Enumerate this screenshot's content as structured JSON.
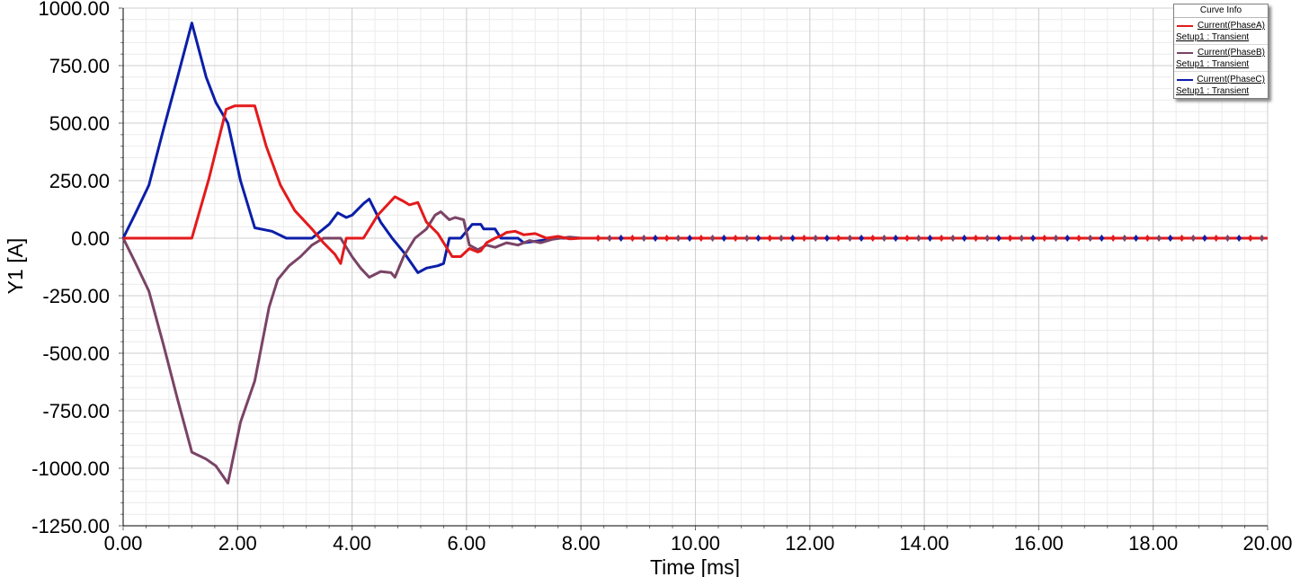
{
  "chart_data": {
    "type": "line",
    "xlabel": "Time [ms]",
    "ylabel": "Y1 [A]",
    "xlim": [
      0,
      20
    ],
    "ylim": [
      -1250,
      1000
    ],
    "x_ticks": [
      "0.00",
      "2.00",
      "4.00",
      "6.00",
      "8.00",
      "10.00",
      "12.00",
      "14.00",
      "16.00",
      "18.00",
      "20.00"
    ],
    "y_ticks": [
      "1000.00",
      "750.00",
      "500.00",
      "250.00",
      "0.00",
      "-250.00",
      "-500.00",
      "-750.00",
      "-1000.00",
      "-1250.00"
    ],
    "grid": true,
    "legend": {
      "title": "Curve Info",
      "position": "top-right"
    },
    "series": [
      {
        "name": "Current(PhaseA)",
        "setup": "Setup1 : Transient",
        "color": "#e31a1c",
        "points": [
          [
            0,
            0
          ],
          [
            1.2,
            0
          ],
          [
            1.5,
            260
          ],
          [
            1.8,
            560
          ],
          [
            1.95,
            575
          ],
          [
            2.3,
            575
          ],
          [
            2.5,
            400
          ],
          [
            2.75,
            230
          ],
          [
            3.0,
            120
          ],
          [
            3.3,
            40
          ],
          [
            3.5,
            -20
          ],
          [
            3.7,
            -70
          ],
          [
            3.8,
            -110
          ],
          [
            3.9,
            0
          ],
          [
            4.2,
            0
          ],
          [
            4.45,
            100
          ],
          [
            4.75,
            180
          ],
          [
            4.9,
            160
          ],
          [
            5.0,
            145
          ],
          [
            5.15,
            155
          ],
          [
            5.3,
            70
          ],
          [
            5.5,
            20
          ],
          [
            5.75,
            -80
          ],
          [
            5.9,
            -80
          ],
          [
            6.05,
            -45
          ],
          [
            6.2,
            -60
          ],
          [
            6.25,
            -55
          ],
          [
            6.35,
            -20
          ],
          [
            6.5,
            0
          ],
          [
            6.6,
            10
          ],
          [
            6.7,
            25
          ],
          [
            6.85,
            30
          ],
          [
            7.0,
            15
          ],
          [
            7.2,
            20
          ],
          [
            7.4,
            0
          ],
          [
            7.6,
            8
          ],
          [
            7.8,
            -3
          ],
          [
            8.0,
            0
          ],
          [
            20,
            0
          ]
        ]
      },
      {
        "name": "Current(PhaseB)",
        "setup": "Setup1 : Transient",
        "color": "#7a4466",
        "points": [
          [
            0,
            0
          ],
          [
            0.2,
            -100
          ],
          [
            0.45,
            -230
          ],
          [
            0.7,
            -460
          ],
          [
            0.95,
            -700
          ],
          [
            1.2,
            -930
          ],
          [
            1.45,
            -960
          ],
          [
            1.62,
            -990
          ],
          [
            1.83,
            -1065
          ],
          [
            2.05,
            -800
          ],
          [
            2.3,
            -620
          ],
          [
            2.55,
            -300
          ],
          [
            2.7,
            -180
          ],
          [
            2.9,
            -120
          ],
          [
            3.1,
            -80
          ],
          [
            3.3,
            -30
          ],
          [
            3.5,
            0
          ],
          [
            3.8,
            0
          ],
          [
            4.0,
            -80
          ],
          [
            4.15,
            -130
          ],
          [
            4.3,
            -170
          ],
          [
            4.5,
            -145
          ],
          [
            4.68,
            -150
          ],
          [
            4.75,
            -170
          ],
          [
            4.9,
            -80
          ],
          [
            5.1,
            0
          ],
          [
            5.3,
            40
          ],
          [
            5.45,
            100
          ],
          [
            5.55,
            115
          ],
          [
            5.7,
            80
          ],
          [
            5.8,
            90
          ],
          [
            5.95,
            80
          ],
          [
            6.05,
            -30
          ],
          [
            6.2,
            -50
          ],
          [
            6.35,
            -30
          ],
          [
            6.5,
            -40
          ],
          [
            6.7,
            -20
          ],
          [
            6.9,
            -30
          ],
          [
            7.1,
            -10
          ],
          [
            7.3,
            -20
          ],
          [
            7.5,
            -5
          ],
          [
            7.8,
            5
          ],
          [
            8.0,
            0
          ],
          [
            20,
            0
          ]
        ]
      },
      {
        "name": "Current(PhaseC)",
        "setup": "Setup1 : Transient",
        "color": "#0b1ea8",
        "points": [
          [
            0,
            0
          ],
          [
            0.2,
            100
          ],
          [
            0.45,
            230
          ],
          [
            0.7,
            470
          ],
          [
            0.95,
            700
          ],
          [
            1.2,
            935
          ],
          [
            1.45,
            700
          ],
          [
            1.62,
            590
          ],
          [
            1.83,
            500
          ],
          [
            2.05,
            250
          ],
          [
            2.3,
            45
          ],
          [
            2.6,
            30
          ],
          [
            2.85,
            0
          ],
          [
            3.3,
            0
          ],
          [
            3.6,
            60
          ],
          [
            3.75,
            110
          ],
          [
            3.9,
            90
          ],
          [
            4.0,
            100
          ],
          [
            4.2,
            150
          ],
          [
            4.3,
            170
          ],
          [
            4.5,
            70
          ],
          [
            4.7,
            0
          ],
          [
            4.9,
            -60
          ],
          [
            5.15,
            -150
          ],
          [
            5.3,
            -130
          ],
          [
            5.5,
            -120
          ],
          [
            5.6,
            -110
          ],
          [
            5.7,
            0
          ],
          [
            5.9,
            0
          ],
          [
            6.1,
            60
          ],
          [
            6.25,
            60
          ],
          [
            6.3,
            40
          ],
          [
            6.5,
            40
          ],
          [
            6.6,
            0
          ],
          [
            6.9,
            0
          ],
          [
            7.0,
            -20
          ],
          [
            7.3,
            -10
          ],
          [
            7.6,
            0
          ],
          [
            8.0,
            0
          ],
          [
            20,
            0
          ]
        ]
      }
    ]
  }
}
